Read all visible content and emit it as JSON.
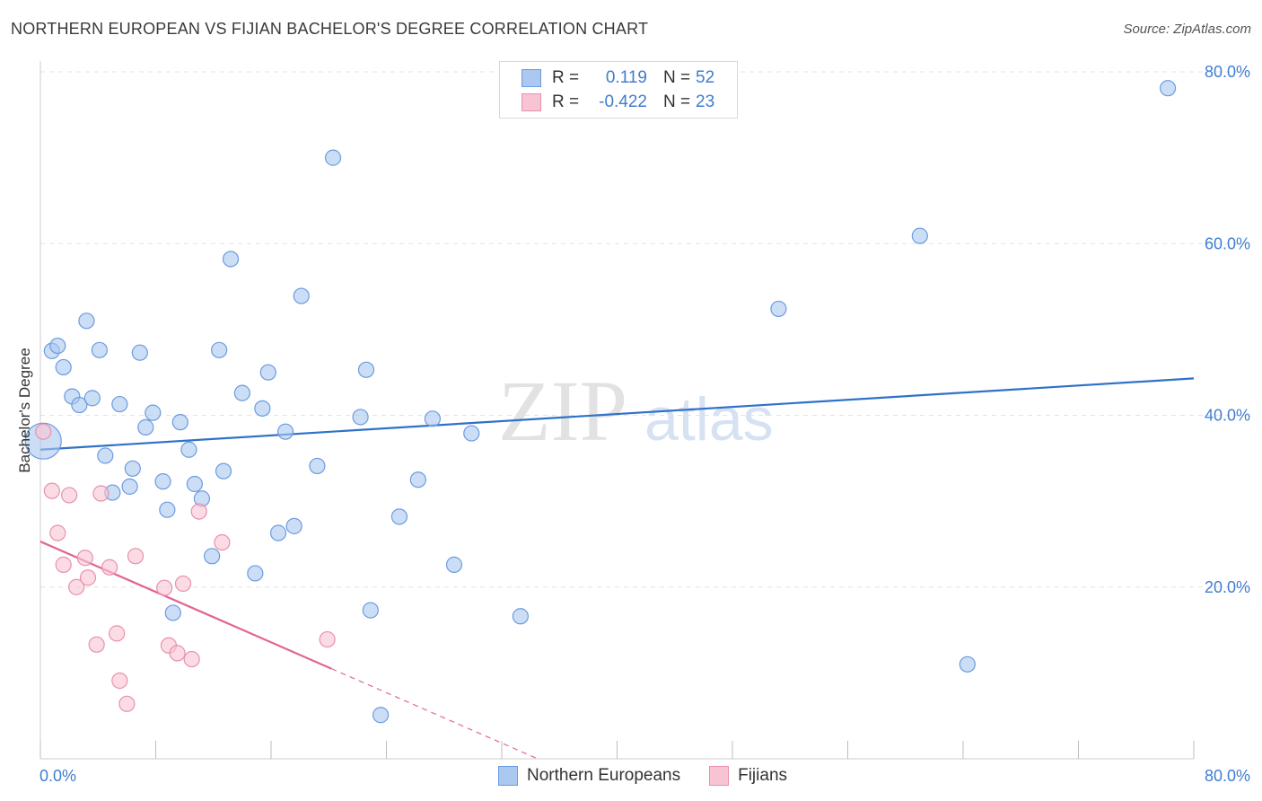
{
  "title": "NORTHERN EUROPEAN VS FIJIAN BACHELOR'S DEGREE CORRELATION CHART",
  "source": "Source: ZipAtlas.com",
  "watermark": {
    "zip": "ZIP",
    "atlas": "atlas"
  },
  "legend_top": {
    "rows": [
      {
        "r_label": "R =",
        "r_value": "0.119",
        "n_label": "N =",
        "n_value": "52",
        "color": "#aac8f0",
        "border": "#6b9be0"
      },
      {
        "r_label": "R =",
        "r_value": "-0.422",
        "n_label": "N =",
        "n_value": "23",
        "color": "#f8c4d4",
        "border": "#e890ac"
      }
    ]
  },
  "legend_bottom": [
    {
      "label": "Northern Europeans",
      "color": "#aac8f0",
      "border": "#6b9be0"
    },
    {
      "label": "Fijians",
      "color": "#f8c4d4",
      "border": "#e890ac"
    }
  ],
  "chart_data": {
    "type": "scatter",
    "title": "NORTHERN EUROPEAN VS FIJIAN BACHELOR'S DEGREE CORRELATION CHART",
    "xlabel": "",
    "ylabel": "Bachelor's Degree",
    "xlim": [
      0,
      80
    ],
    "ylim": [
      0,
      80
    ],
    "x_tick_labels": [
      "0.0%",
      "80.0%"
    ],
    "y_tick_labels": [
      "20.0%",
      "40.0%",
      "60.0%",
      "80.0%"
    ],
    "y_ticks": [
      20,
      40,
      60,
      80
    ],
    "series": [
      {
        "name": "Northern Europeans",
        "color": "#aac8f0",
        "stroke": "#6b9be0",
        "trend_color": "#2f72c9",
        "trend": {
          "x0": 0,
          "y0": 36.0,
          "x1": 80,
          "y1": 44.3,
          "dash_from": null
        },
        "points": [
          [
            0.2,
            37.0
          ],
          [
            0.8,
            47.5
          ],
          [
            1.2,
            48.1
          ],
          [
            1.6,
            45.6
          ],
          [
            2.2,
            42.2
          ],
          [
            2.7,
            41.2
          ],
          [
            3.2,
            51.0
          ],
          [
            3.6,
            42.0
          ],
          [
            4.1,
            47.6
          ],
          [
            4.5,
            35.3
          ],
          [
            5.0,
            31.0
          ],
          [
            5.5,
            41.3
          ],
          [
            6.2,
            31.7
          ],
          [
            6.4,
            33.8
          ],
          [
            6.9,
            47.3
          ],
          [
            7.3,
            38.6
          ],
          [
            7.8,
            40.3
          ],
          [
            8.5,
            32.3
          ],
          [
            8.8,
            29.0
          ],
          [
            9.2,
            17.0
          ],
          [
            9.7,
            39.2
          ],
          [
            10.3,
            36.0
          ],
          [
            10.7,
            32.0
          ],
          [
            11.2,
            30.3
          ],
          [
            11.9,
            23.6
          ],
          [
            12.4,
            47.6
          ],
          [
            12.7,
            33.5
          ],
          [
            13.2,
            58.2
          ],
          [
            14.0,
            42.6
          ],
          [
            14.9,
            21.6
          ],
          [
            15.4,
            40.8
          ],
          [
            15.8,
            45.0
          ],
          [
            16.5,
            26.3
          ],
          [
            17.0,
            38.1
          ],
          [
            17.6,
            27.1
          ],
          [
            18.1,
            53.9
          ],
          [
            19.2,
            34.1
          ],
          [
            20.3,
            70.0
          ],
          [
            22.2,
            39.8
          ],
          [
            22.6,
            45.3
          ],
          [
            22.9,
            17.3
          ],
          [
            23.6,
            5.1
          ],
          [
            24.9,
            28.2
          ],
          [
            26.2,
            32.5
          ],
          [
            27.2,
            39.6
          ],
          [
            28.7,
            22.6
          ],
          [
            29.9,
            37.9
          ],
          [
            33.3,
            16.6
          ],
          [
            51.2,
            52.4
          ],
          [
            61.0,
            60.9
          ],
          [
            64.3,
            11.0
          ],
          [
            78.2,
            78.1
          ]
        ]
      },
      {
        "name": "Fijians",
        "color": "#f8c4d4",
        "stroke": "#e890ac",
        "trend_color": "#e06890",
        "trend": {
          "x0": 0,
          "y0": 25.3,
          "x1": 34.5,
          "y1": 0.0,
          "dash_from": 20.2
        },
        "points": [
          [
            0.2,
            38.1
          ],
          [
            0.8,
            31.2
          ],
          [
            1.2,
            26.3
          ],
          [
            1.6,
            22.6
          ],
          [
            2.0,
            30.7
          ],
          [
            2.5,
            20.0
          ],
          [
            3.1,
            23.4
          ],
          [
            3.3,
            21.1
          ],
          [
            3.9,
            13.3
          ],
          [
            4.2,
            30.9
          ],
          [
            4.8,
            22.3
          ],
          [
            5.3,
            14.6
          ],
          [
            5.5,
            9.1
          ],
          [
            6.0,
            6.4
          ],
          [
            6.6,
            23.6
          ],
          [
            8.6,
            19.9
          ],
          [
            8.9,
            13.2
          ],
          [
            9.5,
            12.3
          ],
          [
            9.9,
            20.4
          ],
          [
            10.5,
            11.6
          ],
          [
            11.0,
            28.8
          ],
          [
            12.6,
            25.2
          ],
          [
            19.9,
            13.9
          ]
        ]
      }
    ]
  }
}
